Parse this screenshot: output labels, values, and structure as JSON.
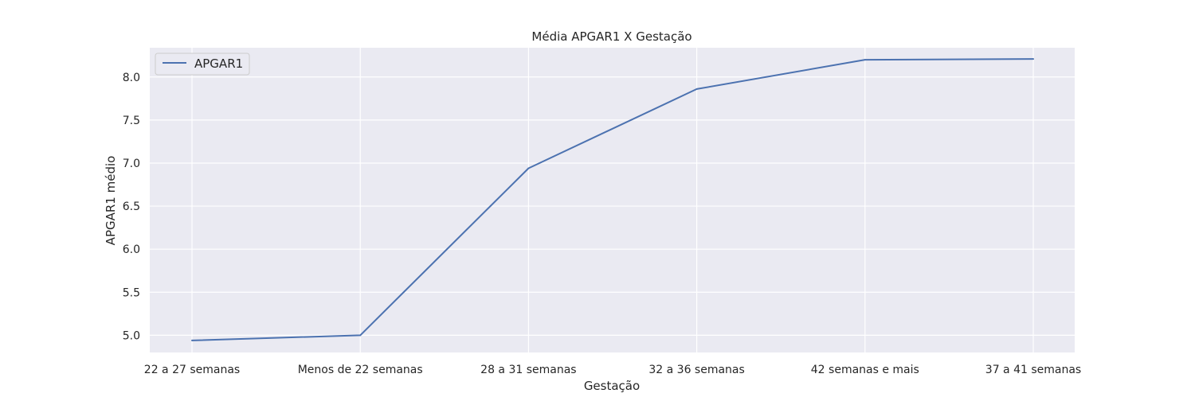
{
  "chart_data": {
    "type": "line",
    "title": "Média APGAR1 X Gestação",
    "xlabel": "Gestação",
    "ylabel": "APGAR1 médio",
    "categories": [
      "22 a 27 semanas",
      "Menos de 22 semanas",
      "28 a 31 semanas",
      "32 a 36 semanas",
      "42 semanas e mais",
      "37 a 41 semanas"
    ],
    "series": [
      {
        "name": "APGAR1",
        "values": [
          4.94,
          5.0,
          6.94,
          7.86,
          8.2,
          8.21
        ],
        "color": "#4c72b0"
      }
    ],
    "yticks": [
      "5.0",
      "5.5",
      "6.0",
      "6.5",
      "7.0",
      "7.5",
      "8.0"
    ],
    "ylim": [
      4.8,
      8.34
    ],
    "grid": true,
    "legend": "top-left",
    "background": "#eaeaf2",
    "grid_color": "#ffffff"
  }
}
